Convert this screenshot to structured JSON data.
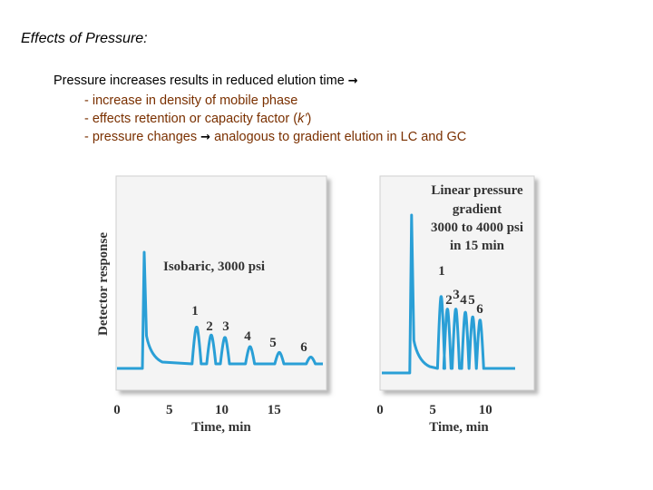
{
  "slide": {
    "title": "Effects of Pressure:",
    "main_line": "Pressure increases results in reduced elution time",
    "bullets": [
      {
        "before": "- increase in density of mobile phase",
        "after": ""
      },
      {
        "before": "- effects retention or capacity factor (",
        "italic": "k’",
        "after": ")"
      },
      {
        "before": "- pressure changes",
        "after": "analogous to gradient elution in LC and GC",
        "arrow": true
      }
    ]
  },
  "chart_data": [
    {
      "type": "line",
      "title": "Isobaric, 3000 psi",
      "ylabel": "Detector response",
      "xlabel": "Time, min",
      "x_ticks": [
        0,
        5,
        10,
        15
      ],
      "xlim": [
        0,
        20
      ],
      "peak_labels": [
        "1",
        "2",
        "3",
        "4",
        "5",
        "6"
      ],
      "peaks_time_min": [
        2.6,
        7.6,
        9.0,
        10.3,
        12.7,
        15.5,
        18.5
      ],
      "peaks_relative_height": [
        1.0,
        0.35,
        0.28,
        0.26,
        0.18,
        0.13,
        0.09
      ]
    },
    {
      "type": "line",
      "title": "Linear pressure gradient 3000 to 4000 psi in 15 min",
      "title_lines": [
        "Linear pressure",
        "gradient",
        "3000 to 4000 psi",
        "in 15 min"
      ],
      "xlabel": "Time, min",
      "x_ticks": [
        0,
        5,
        10
      ],
      "xlim": [
        0,
        13
      ],
      "peak_labels": [
        "1",
        "2",
        "3",
        "4",
        "5",
        "6"
      ],
      "peaks_time_min": [
        3.0,
        5.8,
        6.4,
        7.2,
        8.1,
        8.8,
        9.5
      ],
      "peaks_relative_height": [
        1.0,
        0.48,
        0.4,
        0.4,
        0.38,
        0.35,
        0.33
      ]
    }
  ]
}
